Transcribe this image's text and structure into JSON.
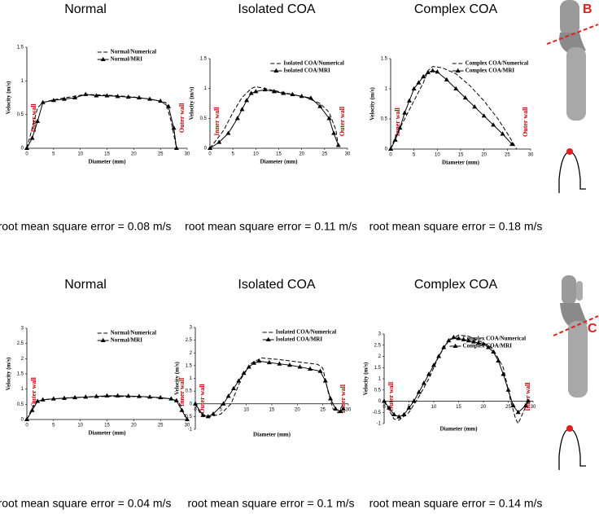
{
  "panel_labels": [
    "B",
    "C"
  ],
  "chart_data": [
    {
      "type": "line",
      "title": "Normal",
      "xlabel": "Diameter (mm)",
      "ylabel": "Velocity (m/s)",
      "xlim": [
        0,
        30
      ],
      "xticks": [
        0,
        5,
        10,
        15,
        20,
        25,
        30
      ],
      "ylim": [
        0,
        1.5
      ],
      "yticks": [
        0,
        0.5,
        1,
        1.5
      ],
      "wall_labels": [
        "Inner wall",
        "Outer wall"
      ],
      "footnote": "root mean square error = 0.08 m/s",
      "series": [
        {
          "name": "Normal/Numerical",
          "color": "#000000",
          "line_style": "dashed",
          "marker": "none",
          "x": [
            0,
            1,
            2,
            3,
            5,
            8,
            11,
            14,
            17,
            20,
            23,
            26,
            27,
            28
          ],
          "values": [
            0,
            0.3,
            0.6,
            0.68,
            0.72,
            0.76,
            0.8,
            0.79,
            0.78,
            0.76,
            0.73,
            0.68,
            0.4,
            0
          ]
        },
        {
          "name": "Normal/MRI",
          "color": "#000000",
          "line_style": "solid",
          "marker": "triangle",
          "x": [
            0,
            1,
            2,
            3,
            5,
            7,
            9,
            11,
            13,
            15,
            17,
            19,
            21,
            23,
            25,
            26.5,
            27.5,
            28
          ],
          "values": [
            0,
            0.15,
            0.4,
            0.68,
            0.71,
            0.73,
            0.75,
            0.8,
            0.78,
            0.78,
            0.77,
            0.76,
            0.75,
            0.73,
            0.7,
            0.62,
            0.3,
            0
          ]
        }
      ]
    },
    {
      "type": "line",
      "title": "Isolated COA",
      "xlabel": "Diameter (mm)",
      "ylabel": "Velocity (m/s)",
      "xlim": [
        0,
        30
      ],
      "xticks": [
        0,
        5,
        10,
        15,
        20,
        25,
        30
      ],
      "ylim": [
        0,
        1.5
      ],
      "yticks": [
        0,
        0.5,
        1,
        1.5
      ],
      "wall_labels": [
        "Inner wall",
        "Outer wall"
      ],
      "footnote": "root mean square error = 0.11 m/s",
      "series": [
        {
          "name": "Isolated COA/Numerical",
          "color": "#000000",
          "line_style": "dashed",
          "marker": "none",
          "x": [
            0,
            1,
            3,
            5,
            7,
            9,
            10,
            12,
            15,
            18,
            21,
            24,
            26,
            27.5,
            28
          ],
          "values": [
            0,
            0.1,
            0.3,
            0.6,
            0.85,
            1.0,
            1.03,
            1.0,
            0.95,
            0.9,
            0.85,
            0.75,
            0.6,
            0.3,
            0
          ]
        },
        {
          "name": "Isolated COA/MRI",
          "color": "#000000",
          "line_style": "solid",
          "marker": "triangle",
          "x": [
            0,
            2,
            4,
            6,
            7,
            8,
            9,
            10,
            12,
            14,
            16,
            18,
            20,
            22,
            24,
            26,
            27,
            28
          ],
          "values": [
            0,
            0.1,
            0.25,
            0.5,
            0.65,
            0.8,
            0.92,
            0.95,
            0.98,
            0.95,
            0.92,
            0.9,
            0.87,
            0.84,
            0.7,
            0.5,
            0.25,
            0.05
          ]
        }
      ]
    },
    {
      "type": "line",
      "title": "Complex COA",
      "xlabel": "Diameter (mm)",
      "ylabel": "Velocity (m/s)",
      "xlim": [
        0,
        30
      ],
      "xticks": [
        0,
        5,
        10,
        15,
        20,
        25,
        30
      ],
      "ylim": [
        0,
        1.5
      ],
      "yticks": [
        0,
        0.5,
        1,
        1.5
      ],
      "wall_labels": [
        "Inner wall",
        "Outer wall"
      ],
      "footnote": "root mean square error = 0.18 m/s",
      "series": [
        {
          "name": "Complex COA/Numerical",
          "color": "#000000",
          "line_style": "dashed",
          "marker": "none",
          "x": [
            0,
            1,
            3,
            5,
            7,
            8,
            9,
            11,
            14,
            17,
            20,
            23,
            25.5,
            27
          ],
          "values": [
            0,
            0.2,
            0.5,
            0.8,
            1.1,
            1.3,
            1.37,
            1.35,
            1.25,
            1.05,
            0.8,
            0.5,
            0.2,
            0
          ]
        },
        {
          "name": "Complex COA/MRI",
          "color": "#000000",
          "line_style": "solid",
          "marker": "triangle",
          "x": [
            0,
            1,
            2,
            3,
            4,
            5,
            6,
            7,
            8,
            9,
            10,
            12,
            14,
            16,
            18,
            20,
            22,
            24,
            26
          ],
          "values": [
            0,
            0.15,
            0.35,
            0.6,
            0.8,
            1.0,
            1.1,
            1.2,
            1.27,
            1.3,
            1.28,
            1.15,
            1.0,
            0.85,
            0.7,
            0.55,
            0.4,
            0.25,
            0.08
          ]
        }
      ]
    },
    {
      "type": "line",
      "title": "Normal",
      "xlabel": "Diameter (mm)",
      "ylabel": "Velocity (m/s)",
      "xlim": [
        0,
        30
      ],
      "xticks": [
        0,
        5,
        10,
        15,
        20,
        25,
        30
      ],
      "ylim": [
        0,
        3
      ],
      "yticks": [
        0,
        0.5,
        1,
        1.5,
        2,
        2.5,
        3
      ],
      "wall_labels": [
        "Outer wall",
        "Inner wall"
      ],
      "footnote": "root mean square error = 0.04 m/s",
      "series": [
        {
          "name": "Normal/Numerical",
          "color": "#000000",
          "line_style": "dashed",
          "marker": "none",
          "x": [
            0,
            1.5,
            3,
            8,
            15,
            22,
            27,
            28.5,
            30
          ],
          "values": [
            0,
            0.55,
            0.65,
            0.72,
            0.76,
            0.75,
            0.68,
            0.55,
            0
          ]
        },
        {
          "name": "Normal/MRI",
          "color": "#000000",
          "line_style": "solid",
          "marker": "triangle",
          "x": [
            0,
            1,
            2,
            3,
            5,
            7,
            9,
            11,
            13,
            15,
            17,
            19,
            21,
            23,
            25,
            27,
            28,
            29,
            30
          ],
          "values": [
            0,
            0.3,
            0.6,
            0.65,
            0.68,
            0.7,
            0.72,
            0.74,
            0.76,
            0.78,
            0.78,
            0.77,
            0.76,
            0.74,
            0.72,
            0.68,
            0.62,
            0.3,
            0
          ]
        }
      ]
    },
    {
      "type": "line",
      "title": "Isolated COA",
      "xlabel": "Diameter (mm)",
      "ylabel": "Velocity (m/s)",
      "xlim": [
        0,
        30
      ],
      "xticks": [
        0,
        5,
        10,
        15,
        20,
        25,
        30
      ],
      "ylim": [
        -1,
        3
      ],
      "yticks": [
        -1,
        -0.5,
        0,
        0.5,
        1,
        1.5,
        2,
        2.5,
        3
      ],
      "wall_labels": [
        "Outer wall",
        "Inner wall"
      ],
      "footnote": "root mean square error = 0.1 m/s",
      "series": [
        {
          "name": "Isolated COA/Numerical",
          "color": "#000000",
          "line_style": "dashed",
          "marker": "none",
          "x": [
            0,
            1,
            3,
            5,
            7,
            9,
            11,
            13,
            16,
            20,
            24,
            25,
            26,
            27,
            28,
            29
          ],
          "values": [
            0,
            -0.4,
            -0.5,
            -0.4,
            0,
            1,
            1.6,
            1.8,
            1.75,
            1.65,
            1.55,
            1.4,
            0.5,
            -0.2,
            -0.35,
            0
          ]
        },
        {
          "name": "Isolated COA/MRI",
          "color": "#000000",
          "line_style": "solid",
          "marker": "triangle",
          "x": [
            0,
            1.5,
            2.5,
            3.5,
            5.5,
            6.5,
            7.5,
            8.5,
            9.5,
            10.5,
            11.5,
            12.5,
            14.5,
            16.5,
            18.5,
            20.5,
            22.5,
            24.5,
            25.5,
            26.5,
            27.5,
            28.5,
            29
          ],
          "values": [
            0,
            -0.45,
            -0.5,
            -0.4,
            0,
            0.3,
            0.6,
            0.9,
            1.2,
            1.45,
            1.6,
            1.68,
            1.62,
            1.57,
            1.52,
            1.45,
            1.37,
            1.28,
            0.9,
            0.2,
            -0.2,
            -0.3,
            -0.2
          ]
        }
      ]
    },
    {
      "type": "line",
      "title": "Complex COA",
      "xlabel": "Diameter (mm)",
      "ylabel": "Velocity (m/s)",
      "xlim": [
        0,
        30
      ],
      "xticks": [
        0,
        5,
        10,
        15,
        20,
        25,
        30
      ],
      "ylim": [
        -1,
        3
      ],
      "yticks": [
        -1,
        -0.5,
        0,
        0.5,
        1,
        1.5,
        2,
        2.5,
        3
      ],
      "wall_labels": [
        "Outer wall",
        "Inner wall"
      ],
      "footnote": "root mean square error = 0.14 m/s",
      "series": [
        {
          "name": "Complex COA/Numerical",
          "color": "#000000",
          "line_style": "dashed",
          "marker": "none",
          "x": [
            0,
            2,
            3,
            5,
            7,
            9,
            11,
            13,
            15,
            17,
            19,
            21,
            22,
            24,
            25.5,
            26.5,
            27,
            28,
            29
          ],
          "values": [
            0,
            -0.8,
            -0.85,
            -0.5,
            0.2,
            1,
            2,
            2.7,
            2.95,
            2.9,
            2.7,
            2.5,
            2.3,
            1.5,
            0,
            -0.8,
            -1,
            -0.5,
            0
          ]
        },
        {
          "name": "Complex COA/MRI",
          "color": "#000000",
          "line_style": "solid",
          "marker": "triangle",
          "x": [
            0,
            1,
            2,
            3,
            4,
            5,
            6,
            7,
            8,
            9,
            10,
            11,
            12,
            13,
            14,
            15,
            16,
            17,
            18,
            19,
            20,
            21,
            22,
            23,
            24,
            25,
            26,
            27,
            28.5,
            29
          ],
          "values": [
            0,
            -0.3,
            -0.6,
            -0.7,
            -0.6,
            -0.3,
            0,
            0.4,
            0.8,
            1.2,
            1.6,
            2.0,
            2.4,
            2.7,
            2.85,
            2.8,
            2.75,
            2.7,
            2.65,
            2.6,
            2.55,
            2.4,
            2.2,
            1.8,
            1.2,
            0.5,
            -0.2,
            -0.5,
            -0.2,
            0
          ]
        }
      ]
    }
  ]
}
